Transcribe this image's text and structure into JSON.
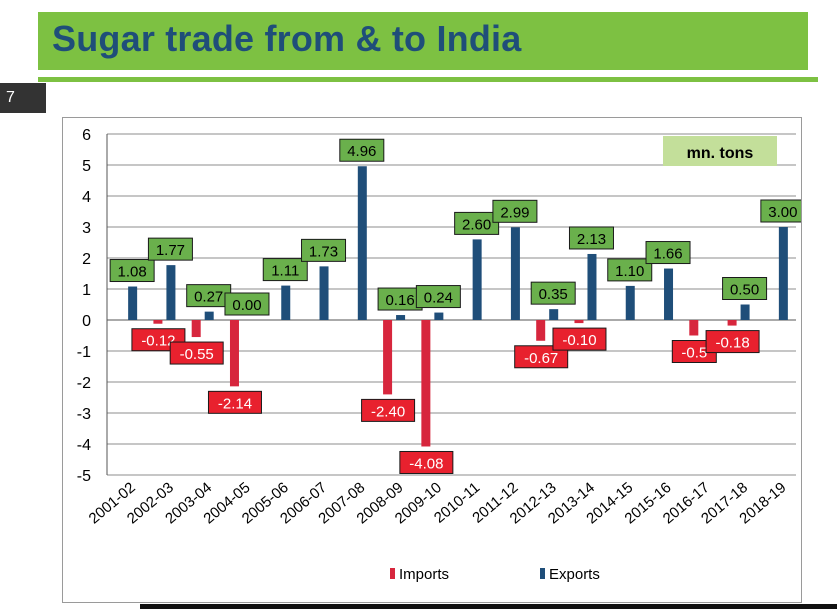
{
  "slide": {
    "title": "Sugar trade from & to India",
    "number": "7"
  },
  "colors": {
    "title_bar": "#7dc142",
    "title_text": "#1f4e79",
    "imports_bar": "#d7263d",
    "exports_bar": "#1f4e79",
    "export_label_bg": "#6ab04c",
    "import_label_bg": "#e8212e"
  },
  "chart_data": {
    "type": "bar",
    "categories": [
      "2001-02",
      "2002-03",
      "2003-04",
      "2004-05",
      "2005-06",
      "2006-07",
      "2007-08",
      "2008-09",
      "2009-10",
      "2010-11",
      "2011-12",
      "2012-13",
      "2013-14",
      "2014-15",
      "2015-16",
      "2016-17",
      "2017-18",
      "2018-19"
    ],
    "series": [
      {
        "name": "Imports",
        "values": [
          0,
          -0.12,
          -0.55,
          -2.14,
          0,
          0,
          0,
          -2.4,
          -4.08,
          0,
          0,
          -0.67,
          -0.1,
          0,
          0,
          -0.5,
          -0.18,
          0
        ],
        "labels": [
          "",
          "-0.12",
          "-0.55",
          "-2.14",
          "",
          "",
          "",
          "-2.40",
          "-4.08",
          "",
          "",
          "-0.67",
          "-0.10",
          "",
          "",
          "-0.5",
          "-0.18",
          ""
        ]
      },
      {
        "name": "Exports",
        "values": [
          1.08,
          1.77,
          0.27,
          0.0,
          1.11,
          1.73,
          4.96,
          0.16,
          0.24,
          2.6,
          2.99,
          0.35,
          2.13,
          1.1,
          1.66,
          0,
          0.5,
          3.0
        ],
        "labels": [
          "1.08",
          "1.77",
          "0.27",
          "0.00",
          "1.11",
          "1.73",
          "4.96",
          "0.16",
          "0.24",
          "2.60",
          "2.99",
          "0.35",
          "2.13",
          "1.10",
          "1.66",
          "",
          "0.50",
          "3.00"
        ]
      }
    ],
    "ylim": [
      -5,
      6
    ],
    "yticks": [
      "6",
      "5",
      "4",
      "3",
      "2",
      "1",
      "0",
      "-1",
      "-2",
      "-3",
      "-4",
      "-5"
    ],
    "unit_label": "mn. tons",
    "grid": true,
    "legend_position": "bottom"
  }
}
